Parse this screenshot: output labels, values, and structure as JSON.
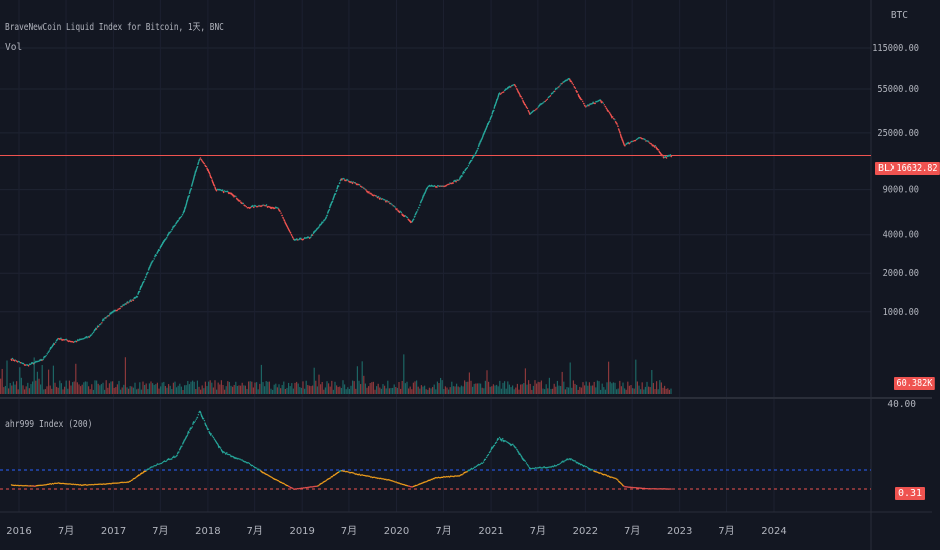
{
  "header": {
    "title": "BraveNewCoin Liquid Index for Bitcoin, 1天, BNC",
    "vol_label": "Vol",
    "indicator_label": "ahr999 Index (200)",
    "unit": "BTC"
  },
  "price_axis": {
    "ticks": [
      "115000.00",
      "55000.00",
      "25000.00",
      "9000.00",
      "4000.00",
      "2000.00",
      "1000.00"
    ]
  },
  "indicator_axis": {
    "ticks": [
      "40.00"
    ]
  },
  "time_axis": {
    "ticks": [
      "2016",
      "7月",
      "2017",
      "7月",
      "2018",
      "7月",
      "2019",
      "7月",
      "2020",
      "7月",
      "2021",
      "7月",
      "2022",
      "7月",
      "2023",
      "7月",
      "2024"
    ]
  },
  "badges": {
    "blx_symbol": "BLX",
    "blx_value": "16632.82",
    "vol_value": "60.382K",
    "ahr_value": "0.31"
  },
  "colors": {
    "background": "#131722",
    "up": "#26a69a",
    "down": "#ef5350",
    "last_price_line": "#ef5350",
    "indicator_high": "#26a69a",
    "indicator_mid": "#f7a21b",
    "indicator_low": "#ef5350",
    "blue_threshold": "#2962ff",
    "red_threshold": "#ef5350"
  },
  "chart_data": {
    "type": "line",
    "scale": "log",
    "last_price": 16632.82,
    "price_series": {
      "x": [
        "2015-12",
        "2016-02",
        "2016-04",
        "2016-06",
        "2016-08",
        "2016-10",
        "2016-12",
        "2017-02",
        "2017-04",
        "2017-06",
        "2017-08",
        "2017-10",
        "2017-12",
        "2018-01",
        "2018-02",
        "2018-04",
        "2018-06",
        "2018-08",
        "2018-10",
        "2018-12",
        "2019-02",
        "2019-04",
        "2019-06",
        "2019-08",
        "2019-10",
        "2019-12",
        "2020-03",
        "2020-05",
        "2020-07",
        "2020-09",
        "2020-11",
        "2021-01",
        "2021-02",
        "2021-04",
        "2021-06",
        "2021-08",
        "2021-10",
        "2021-11",
        "2022-01",
        "2022-03",
        "2022-05",
        "2022-06",
        "2022-08",
        "2022-10",
        "2022-11",
        "2022-12"
      ],
      "values": [
        430,
        380,
        420,
        620,
        580,
        640,
        900,
        1100,
        1300,
        2500,
        4000,
        6000,
        16000,
        13000,
        9000,
        8500,
        6500,
        6800,
        6400,
        3600,
        3800,
        5300,
        11000,
        10000,
        8200,
        7200,
        5000,
        9500,
        9600,
        10800,
        17000,
        33000,
        50000,
        60000,
        35000,
        45000,
        61000,
        66000,
        40000,
        45000,
        30000,
        20000,
        23000,
        19500,
        16000,
        16600
      ]
    },
    "ahr999_series": {
      "x": [
        "2015-12",
        "2016-03",
        "2016-06",
        "2016-09",
        "2016-12",
        "2017-03",
        "2017-06",
        "2017-09",
        "2017-12",
        "2018-01",
        "2018-03",
        "2018-06",
        "2018-09",
        "2018-12",
        "2019-03",
        "2019-06",
        "2019-09",
        "2019-12",
        "2020-03",
        "2020-06",
        "2020-09",
        "2020-12",
        "2021-02",
        "2021-04",
        "2021-06",
        "2021-09",
        "2021-11",
        "2022-02",
        "2022-05",
        "2022-06",
        "2022-09",
        "2022-12"
      ],
      "values": [
        0.5,
        0.45,
        0.6,
        0.5,
        0.55,
        0.65,
        1.4,
        1.9,
        4.1,
        3.2,
        2.1,
        1.6,
        0.9,
        0.3,
        0.45,
        1.2,
        0.95,
        0.75,
        0.4,
        0.85,
        0.95,
        1.6,
        2.8,
        2.4,
        1.3,
        1.4,
        1.8,
        1.2,
        0.8,
        0.42,
        0.32,
        0.31
      ]
    },
    "thresholds": [
      1.2,
      0.45
    ]
  }
}
